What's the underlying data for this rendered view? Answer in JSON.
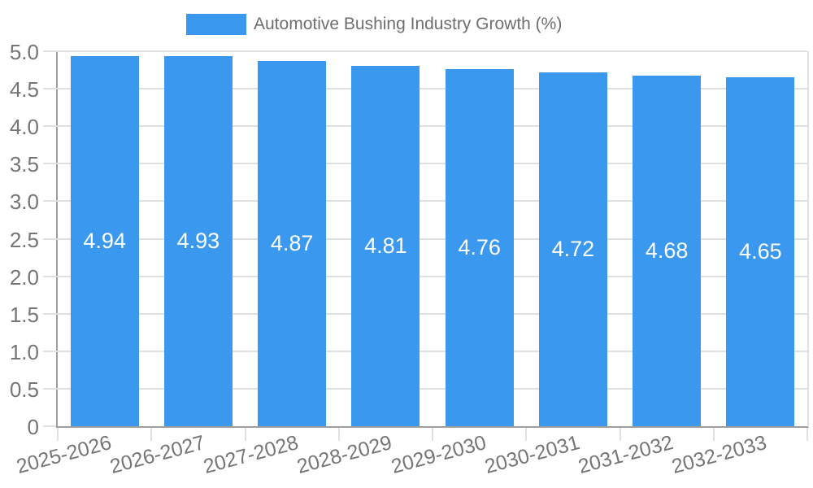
{
  "chart_data": {
    "type": "bar",
    "title": "Automotive Bushing Industry Growth (%)",
    "legend": {
      "label": "Automotive Bushing Industry Growth (%)",
      "position": "top"
    },
    "categories": [
      "2025-2026",
      "2026-2027",
      "2027-2028",
      "2028-2029",
      "2029-2030",
      "2030-2031",
      "2031-2032",
      "2032-2033"
    ],
    "values": [
      4.94,
      4.93,
      4.87,
      4.81,
      4.76,
      4.72,
      4.68,
      4.65
    ],
    "bar_labels": [
      "4.94",
      "4.93",
      "4.87",
      "4.81",
      "4.76",
      "4.72",
      "4.68",
      "4.65"
    ],
    "xlabel": "",
    "ylabel": "",
    "ylim": [
      0,
      5
    ],
    "ytick_values": [
      0,
      0.5,
      1.0,
      1.5,
      2.0,
      2.5,
      3.0,
      3.5,
      4.0,
      4.5,
      5.0
    ],
    "ytick_labels": [
      "0",
      "0.5",
      "1.0",
      "1.5",
      "2.0",
      "2.5",
      "3.0",
      "3.5",
      "4.0",
      "4.5",
      "5.0"
    ],
    "grid": true,
    "bar_label_position": "center-inside",
    "x_label_rotation_deg": -15,
    "colors": {
      "bar": "#3a99ee",
      "bar_label": "#ffffff",
      "grid": "#e0e0e0",
      "axis": "#9e9e9e",
      "tick_text": "#757575",
      "legend_text": "#6e6e6e",
      "background": "#ffffff"
    }
  }
}
